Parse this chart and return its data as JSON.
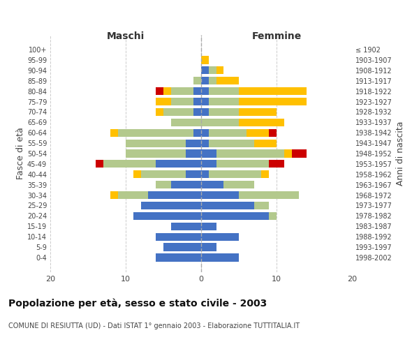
{
  "age_groups": [
    "100+",
    "95-99",
    "90-94",
    "85-89",
    "80-84",
    "75-79",
    "70-74",
    "65-69",
    "60-64",
    "55-59",
    "50-54",
    "45-49",
    "40-44",
    "35-39",
    "30-34",
    "25-29",
    "20-24",
    "15-19",
    "10-14",
    "5-9",
    "0-4"
  ],
  "birth_years": [
    "≤ 1902",
    "1903-1907",
    "1908-1912",
    "1913-1917",
    "1918-1922",
    "1923-1927",
    "1928-1932",
    "1933-1937",
    "1938-1942",
    "1943-1947",
    "1948-1952",
    "1953-1957",
    "1958-1962",
    "1963-1967",
    "1968-1972",
    "1973-1977",
    "1978-1982",
    "1983-1987",
    "1988-1992",
    "1993-1997",
    "1998-2002"
  ],
  "colors": {
    "celibi": "#4472c4",
    "coniugati": "#b3c98d",
    "vedovi": "#ffc000",
    "divorziati": "#cc0000"
  },
  "males": {
    "celibi": [
      0,
      0,
      0,
      0,
      1,
      1,
      1,
      0,
      1,
      2,
      2,
      6,
      2,
      4,
      7,
      8,
      9,
      4,
      6,
      5,
      6
    ],
    "coniugati": [
      0,
      0,
      0,
      1,
      3,
      3,
      4,
      4,
      10,
      8,
      8,
      7,
      6,
      2,
      4,
      0,
      0,
      0,
      0,
      0,
      0
    ],
    "vedovi": [
      0,
      0,
      0,
      0,
      1,
      2,
      1,
      0,
      1,
      0,
      0,
      0,
      1,
      0,
      1,
      0,
      0,
      0,
      0,
      0,
      0
    ],
    "divorziati": [
      0,
      0,
      0,
      0,
      1,
      0,
      0,
      0,
      0,
      0,
      0,
      1,
      0,
      0,
      0,
      0,
      0,
      0,
      0,
      0,
      0
    ]
  },
  "females": {
    "celibi": [
      0,
      0,
      1,
      1,
      1,
      1,
      1,
      0,
      1,
      1,
      2,
      2,
      1,
      3,
      5,
      7,
      9,
      2,
      5,
      2,
      5
    ],
    "coniugati": [
      0,
      0,
      1,
      1,
      4,
      4,
      4,
      5,
      5,
      6,
      9,
      7,
      7,
      4,
      8,
      2,
      1,
      0,
      0,
      0,
      0
    ],
    "vedovi": [
      0,
      1,
      1,
      3,
      9,
      9,
      5,
      6,
      3,
      3,
      1,
      0,
      1,
      0,
      0,
      0,
      0,
      0,
      0,
      0,
      0
    ],
    "divorziati": [
      0,
      0,
      0,
      0,
      0,
      0,
      0,
      0,
      1,
      0,
      2,
      2,
      0,
      0,
      0,
      0,
      0,
      0,
      0,
      0,
      0
    ]
  },
  "title": "Popolazione per età, sesso e stato civile - 2003",
  "subtitle": "COMUNE DI RESIUTTA (UD) - Dati ISTAT 1° gennaio 2003 - Elaborazione TUTTITALIA.IT",
  "ylabel_left": "Fasce di età",
  "ylabel_right": "Anni di nascita",
  "xlabel_left": "Maschi",
  "xlabel_right": "Femmine",
  "xlim": 20,
  "background_color": "#ffffff",
  "grid_color": "#cccccc"
}
